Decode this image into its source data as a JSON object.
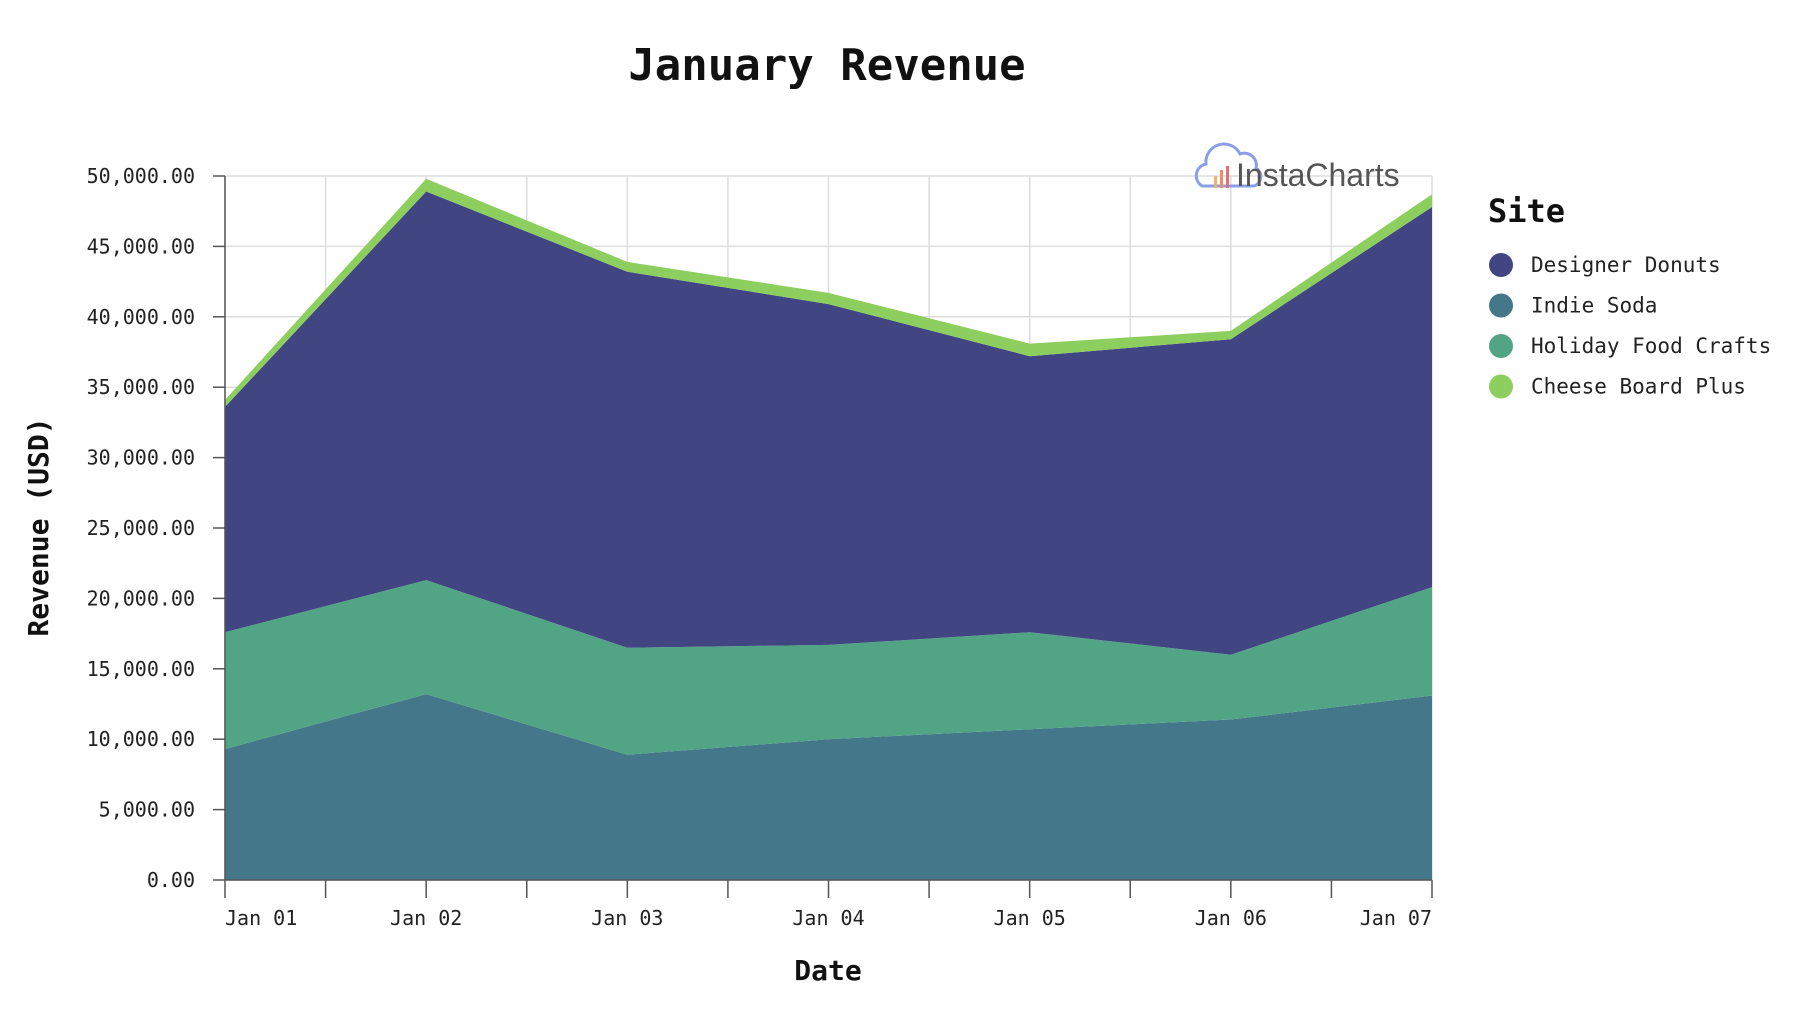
{
  "chart_data": {
    "type": "area",
    "stacked": true,
    "title": "January Revenue",
    "xlabel": "Date",
    "ylabel": "Revenue (USD)",
    "categories": [
      "Jan 01",
      "Jan 02",
      "Jan 03",
      "Jan 04",
      "Jan 05",
      "Jan 06",
      "Jan 07"
    ],
    "ylim": [
      0,
      50000
    ],
    "yticks": [
      "0.00",
      "5,000.00",
      "10,000.00",
      "15,000.00",
      "20,000.00",
      "25,000.00",
      "30,000.00",
      "35,000.00",
      "40,000.00",
      "45,000.00",
      "50,000.00"
    ],
    "grid": true,
    "legend": {
      "title": "Site",
      "position": "right"
    },
    "series": [
      {
        "name": "Indie Soda",
        "color": "#44778a",
        "values": [
          9300,
          13200,
          8900,
          10000,
          10700,
          11400,
          13100
        ]
      },
      {
        "name": "Holiday Food Crafts",
        "color": "#51a585",
        "values": [
          8300,
          8100,
          7600,
          6700,
          6900,
          4600,
          7700
        ]
      },
      {
        "name": "Designer Donuts",
        "color": "#414581",
        "values": [
          16000,
          27600,
          26700,
          24200,
          19600,
          22400,
          27000
        ]
      },
      {
        "name": "Cheese Board Plus",
        "color": "#8ccf5e",
        "values": [
          500,
          900,
          700,
          800,
          900,
          600,
          900
        ]
      }
    ],
    "legend_order": [
      "Designer Donuts",
      "Indie Soda",
      "Holiday Food Crafts",
      "Cheese Board Plus"
    ]
  },
  "watermark": {
    "text": "InstaCharts",
    "icon": "cloud-bar-chart-icon"
  }
}
